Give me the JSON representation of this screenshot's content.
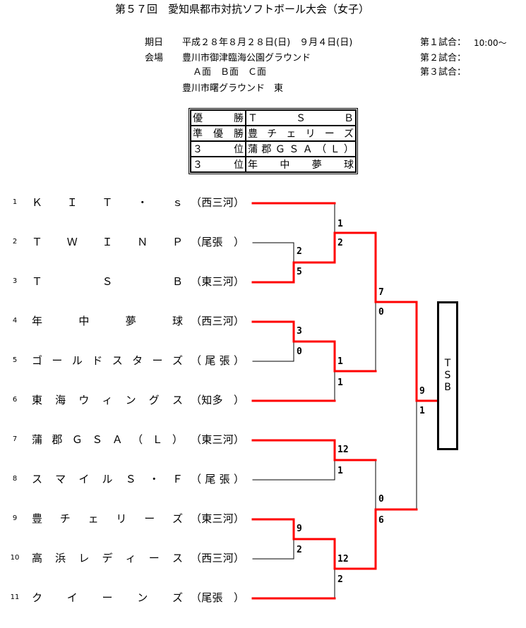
{
  "title": "第５７回　愛知県都市対抗ソフトボール大会（女子）",
  "info": {
    "date_label": "期日",
    "date_value": "平成２８年８月２８日(日)　９月４日(日)",
    "venue_label": "会場",
    "venue_1": "豊川市御津臨海公園グラウンド",
    "venue_1_fields": "Ａ面　Ｂ面　Ｃ面",
    "venue_2": "豊川市曙グラウンド　東",
    "game1_label": "第１試合：",
    "game1_time": "10:00～",
    "game2_label": "第２試合：",
    "game3_label": "第３試合："
  },
  "results": [
    {
      "rank": "優勝",
      "team": "ＴＳＢ"
    },
    {
      "rank": "準優勝",
      "team": "豊チェリーズ"
    },
    {
      "rank": "３位",
      "team": "蒲郡ＧＳＡ（Ｌ）"
    },
    {
      "rank": "３位",
      "team": "年中夢球"
    }
  ],
  "teams": [
    {
      "no": "1",
      "name": "ＫＩＴ・ｓ",
      "region": "（西三河）"
    },
    {
      "no": "2",
      "name": "ＴＷＩＮＰ",
      "region": "（尾張　）"
    },
    {
      "no": "3",
      "name": "ＴＳＢ",
      "region": "（東三河）"
    },
    {
      "no": "4",
      "name": "年中夢球",
      "region": "（西三河）"
    },
    {
      "no": "5",
      "name": "ゴールドスターズ",
      "region": "（尾張）"
    },
    {
      "no": "6",
      "name": "東海ウィングス",
      "region": "（知多　）"
    },
    {
      "no": "7",
      "name": "蒲郡ＧＳＡ（Ｌ）",
      "region": "（東三河）"
    },
    {
      "no": "8",
      "name": "スマイルＳ・Ｆ",
      "region": "（尾張）"
    },
    {
      "no": "9",
      "name": "豊チェリーズ",
      "region": "（東三河）"
    },
    {
      "no": "10",
      "name": "高浜レディース",
      "region": "（西三河）"
    },
    {
      "no": "11",
      "name": "クイーンズ",
      "region": "（尾張　）"
    }
  ],
  "scores": [
    "1",
    "2",
    "2",
    "5",
    "7",
    "0",
    "3",
    "0",
    "1",
    "1",
    "9",
    "1",
    "12",
    "1",
    "0",
    "6",
    "9",
    "2",
    "12",
    "2"
  ],
  "champion": "ＴＳＢ",
  "colors": {
    "winner_line": "#ff0000",
    "loser_line": "#000000"
  }
}
